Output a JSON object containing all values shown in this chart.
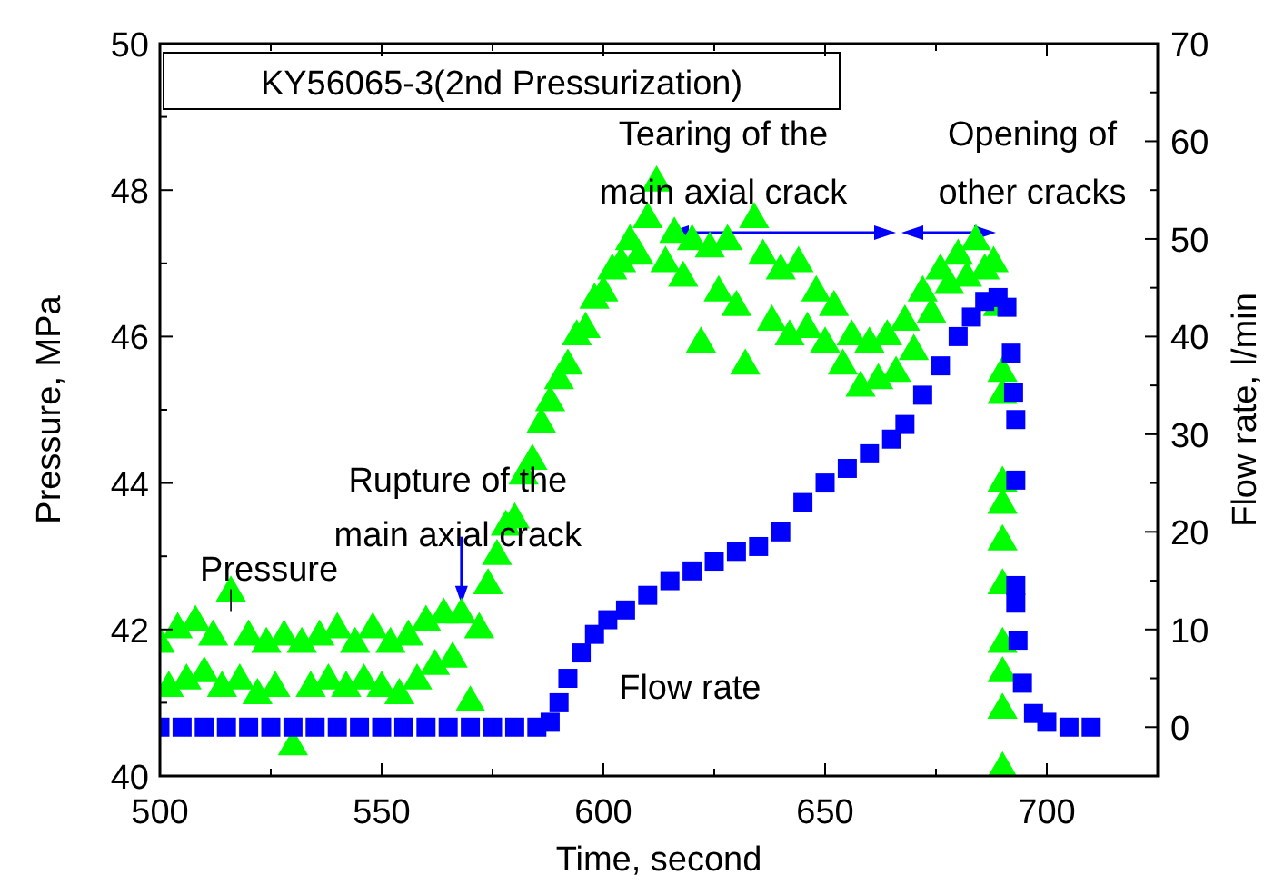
{
  "chart_data": {
    "type": "scatter",
    "title": "KY56065-3(2nd Pressurization)",
    "xlabel": "Time, second",
    "ylabel": "Pressure, MPa",
    "y2label": "Flow rate, l/min",
    "xlim": [
      500,
      725
    ],
    "xticks": [
      500,
      550,
      600,
      650,
      700
    ],
    "ylim": [
      40,
      50
    ],
    "yticks": [
      40,
      42,
      44,
      46,
      48,
      50
    ],
    "y2lim": [
      -5,
      70
    ],
    "y2ticks": [
      0,
      10,
      20,
      30,
      40,
      50,
      60,
      70
    ],
    "grid": false,
    "annotations": [
      {
        "text": "Rupture of the\nmain axial crack",
        "x": 568,
        "y": 42.2
      },
      "Tearing of the\nmain axial crack",
      "Opening of\nother cracks"
    ],
    "series": [
      {
        "name": "Pressure",
        "color": "#00ff00",
        "marker": "triangle",
        "x": [
          500,
          502,
          504,
          506,
          508,
          510,
          512,
          514,
          516,
          518,
          520,
          522,
          524,
          526,
          528,
          530,
          532,
          534,
          536,
          538,
          540,
          542,
          544,
          546,
          548,
          550,
          552,
          554,
          556,
          558,
          560,
          562,
          564,
          566,
          568,
          570,
          572,
          574,
          576,
          578,
          580,
          582,
          584,
          586,
          588,
          590,
          592,
          594,
          596,
          598,
          600,
          602,
          604,
          606,
          608,
          610,
          612,
          614,
          616,
          618,
          620,
          622,
          624,
          626,
          628,
          630,
          632,
          634,
          636,
          638,
          640,
          642,
          644,
          646,
          648,
          650,
          652,
          654,
          656,
          658,
          660,
          662,
          664,
          666,
          668,
          670,
          672,
          674,
          676,
          678,
          680,
          682,
          684,
          686,
          688,
          689,
          690,
          690,
          690,
          690,
          690,
          690,
          690,
          690,
          690,
          690
        ],
        "values": [
          41.8,
          41.2,
          42.0,
          41.3,
          42.1,
          41.4,
          41.9,
          41.2,
          42.5,
          41.3,
          41.9,
          41.1,
          41.8,
          41.2,
          41.9,
          40.4,
          41.8,
          41.2,
          41.9,
          41.3,
          42.0,
          41.2,
          41.8,
          41.3,
          42.0,
          41.2,
          41.8,
          41.1,
          41.9,
          41.3,
          42.1,
          41.5,
          42.2,
          41.6,
          42.2,
          41.0,
          42.0,
          42.6,
          43.0,
          43.4,
          43.5,
          44.1,
          44.3,
          44.8,
          45.1,
          45.4,
          45.6,
          46.0,
          46.1,
          46.5,
          46.6,
          46.9,
          47.0,
          47.3,
          47.1,
          47.6,
          48.1,
          47.0,
          47.4,
          46.8,
          47.3,
          45.9,
          47.2,
          46.6,
          47.3,
          46.4,
          45.6,
          47.6,
          47.1,
          46.2,
          46.9,
          46.0,
          47.0,
          46.1,
          46.6,
          45.9,
          46.4,
          45.6,
          46.0,
          45.3,
          45.9,
          45.4,
          46.0,
          45.5,
          46.2,
          45.8,
          46.6,
          46.3,
          46.9,
          46.7,
          47.1,
          46.8,
          47.3,
          46.9,
          47.0,
          46.4,
          45.5,
          45.2,
          44.0,
          43.7,
          43.2,
          42.6,
          41.8,
          41.4,
          40.9,
          40.1
        ]
      },
      {
        "name": "Flow rate",
        "color": "#0000ff",
        "marker": "square",
        "axis": "y2",
        "x": [
          500,
          505,
          510,
          515,
          520,
          525,
          530,
          535,
          540,
          545,
          550,
          555,
          560,
          565,
          570,
          575,
          580,
          585,
          588,
          590,
          592,
          595,
          598,
          601,
          605,
          610,
          615,
          620,
          625,
          630,
          635,
          640,
          645,
          650,
          655,
          660,
          665,
          668,
          672,
          676,
          680,
          683,
          686,
          689,
          691,
          692,
          692.5,
          693,
          693,
          693,
          693,
          693.5,
          694.5,
          697,
          700,
          705,
          710
        ],
        "values": [
          0,
          0,
          0,
          0,
          0,
          0,
          0,
          0,
          0,
          0,
          0,
          0,
          0,
          0,
          0,
          0,
          0,
          0,
          0.5,
          2.5,
          5,
          7.6,
          9.5,
          11,
          12,
          13.5,
          15,
          16,
          17,
          18,
          18.5,
          20,
          23,
          25,
          26.5,
          28,
          29.5,
          31,
          34,
          37,
          40,
          42,
          43.6,
          44,
          43,
          38.3,
          34.3,
          31.5,
          25.3,
          14.5,
          12.7,
          8.9,
          4.5,
          1.4,
          0.5,
          0,
          0
        ]
      }
    ]
  }
}
